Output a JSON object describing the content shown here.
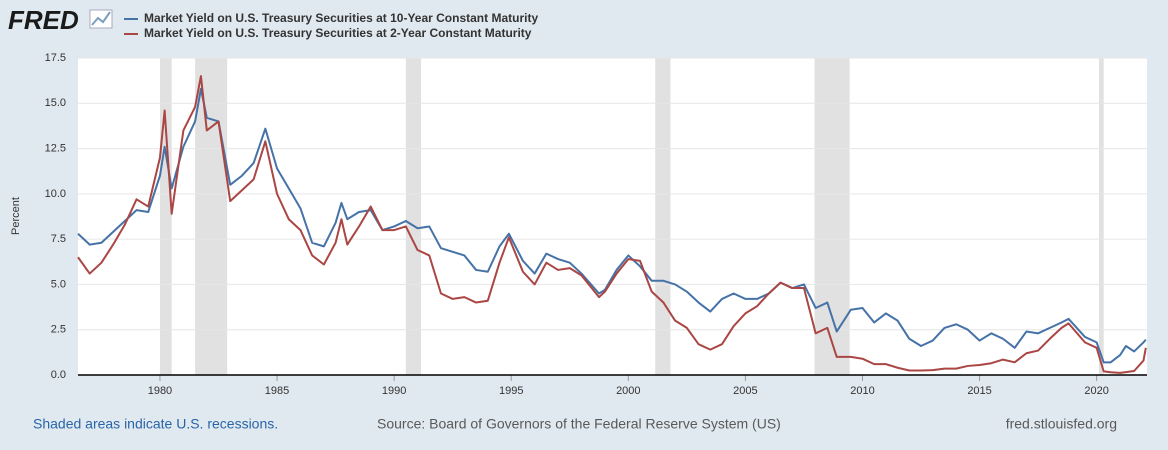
{
  "header": {
    "logo": "FRED"
  },
  "chart_data": {
    "type": "line",
    "y_label": "Percent",
    "x": [
      1976.5,
      1977,
      1977.5,
      1978,
      1978.5,
      1979,
      1979.5,
      1980,
      1980.2,
      1980.5,
      1981,
      1981.5,
      1981.75,
      1982,
      1982.5,
      1983,
      1983.5,
      1984,
      1984.5,
      1985,
      1985.5,
      1986,
      1986.5,
      1987,
      1987.5,
      1987.75,
      1988,
      1988.5,
      1989,
      1989.5,
      1990,
      1990.5,
      1991,
      1991.5,
      1992,
      1992.5,
      1993,
      1993.5,
      1994,
      1994.5,
      1994.9,
      1995.5,
      1996,
      1996.5,
      1997,
      1997.5,
      1998,
      1998.75,
      1999,
      1999.5,
      2000,
      2000.5,
      2001,
      2001.5,
      2002,
      2002.5,
      2003,
      2003.5,
      2004,
      2004.5,
      2005,
      2005.5,
      2006,
      2006.5,
      2007,
      2007.5,
      2008,
      2008.5,
      2008.9,
      2009.5,
      2010,
      2010.5,
      2011,
      2011.5,
      2012,
      2012.5,
      2013,
      2013.5,
      2014,
      2014.5,
      2015,
      2015.5,
      2016,
      2016.5,
      2017,
      2017.5,
      2018,
      2018.5,
      2018.8,
      2019.5,
      2020,
      2020.3,
      2020.6,
      2021,
      2021.25,
      2021.6,
      2022,
      2022.1
    ],
    "series": [
      {
        "name": "Market Yield on U.S. Treasury Securities at 10-Year Constant Maturity",
        "color": "#4572a7",
        "values": [
          7.8,
          7.2,
          7.3,
          7.9,
          8.5,
          9.1,
          9.0,
          11.0,
          12.6,
          10.3,
          12.6,
          14.0,
          15.8,
          14.2,
          14.0,
          10.5,
          11.0,
          11.7,
          13.6,
          11.4,
          10.3,
          9.2,
          7.3,
          7.1,
          8.4,
          9.5,
          8.6,
          9.0,
          9.1,
          8.0,
          8.2,
          8.5,
          8.1,
          8.2,
          7.0,
          6.8,
          6.6,
          5.8,
          5.7,
          7.1,
          7.8,
          6.3,
          5.6,
          6.7,
          6.4,
          6.2,
          5.6,
          4.5,
          4.7,
          5.8,
          6.6,
          6.0,
          5.2,
          5.2,
          5.0,
          4.6,
          4.0,
          3.5,
          4.2,
          4.5,
          4.2,
          4.2,
          4.5,
          5.1,
          4.8,
          5.0,
          3.7,
          4.0,
          2.4,
          3.6,
          3.7,
          2.9,
          3.4,
          3.0,
          2.0,
          1.6,
          1.9,
          2.6,
          2.8,
          2.5,
          1.9,
          2.3,
          2.0,
          1.5,
          2.4,
          2.3,
          2.6,
          2.9,
          3.1,
          2.1,
          1.8,
          0.7,
          0.7,
          1.1,
          1.6,
          1.3,
          1.8,
          1.95
        ]
      },
      {
        "name": "Market Yield on U.S. Treasury Securities at 2-Year Constant Maturity",
        "color": "#aa4643",
        "values": [
          6.5,
          5.6,
          6.2,
          7.2,
          8.3,
          9.7,
          9.3,
          12.0,
          14.6,
          8.9,
          13.5,
          14.8,
          16.5,
          13.5,
          14.0,
          9.6,
          10.2,
          10.8,
          12.9,
          10.0,
          8.6,
          8.0,
          6.6,
          6.1,
          7.3,
          8.6,
          7.2,
          8.2,
          9.3,
          8.0,
          8.0,
          8.2,
          6.9,
          6.6,
          4.5,
          4.2,
          4.3,
          4.0,
          4.1,
          6.2,
          7.6,
          5.7,
          5.0,
          6.2,
          5.8,
          5.9,
          5.5,
          4.3,
          4.6,
          5.6,
          6.4,
          6.3,
          4.6,
          4.0,
          3.0,
          2.6,
          1.7,
          1.4,
          1.7,
          2.7,
          3.4,
          3.8,
          4.5,
          5.1,
          4.8,
          4.8,
          2.3,
          2.6,
          1.0,
          1.0,
          0.9,
          0.6,
          0.6,
          0.4,
          0.25,
          0.25,
          0.27,
          0.35,
          0.35,
          0.5,
          0.55,
          0.65,
          0.85,
          0.7,
          1.2,
          1.35,
          2.0,
          2.6,
          2.85,
          1.8,
          1.5,
          0.2,
          0.15,
          0.12,
          0.16,
          0.22,
          0.8,
          1.5
        ]
      }
    ],
    "recessions": [
      [
        1980.0,
        1980.5
      ],
      [
        1981.5,
        1982.87
      ],
      [
        1990.5,
        1991.15
      ],
      [
        2001.15,
        2001.8
      ],
      [
        2007.95,
        2009.45
      ],
      [
        2020.1,
        2020.3
      ]
    ],
    "xlim": [
      1976.5,
      2022.15
    ],
    "xticks": [
      1980,
      1985,
      1990,
      1995,
      2000,
      2005,
      2010,
      2015,
      2020
    ],
    "ylim": [
      0,
      17.5
    ],
    "yticks": [
      {
        "value": 0,
        "label": "0.0"
      },
      2.5,
      {
        "value": 5,
        "label": "5.0"
      },
      7.5,
      {
        "value": 10,
        "label": "10.0"
      },
      12.5,
      {
        "value": 15,
        "label": "15.0"
      },
      17.5
    ],
    "grid": true
  },
  "footer": {
    "note": "Shaded areas indicate U.S. recessions.",
    "source": "Source: Board of Governors of the Federal Reserve System (US)",
    "site": "fred.stlouisfed.org"
  }
}
